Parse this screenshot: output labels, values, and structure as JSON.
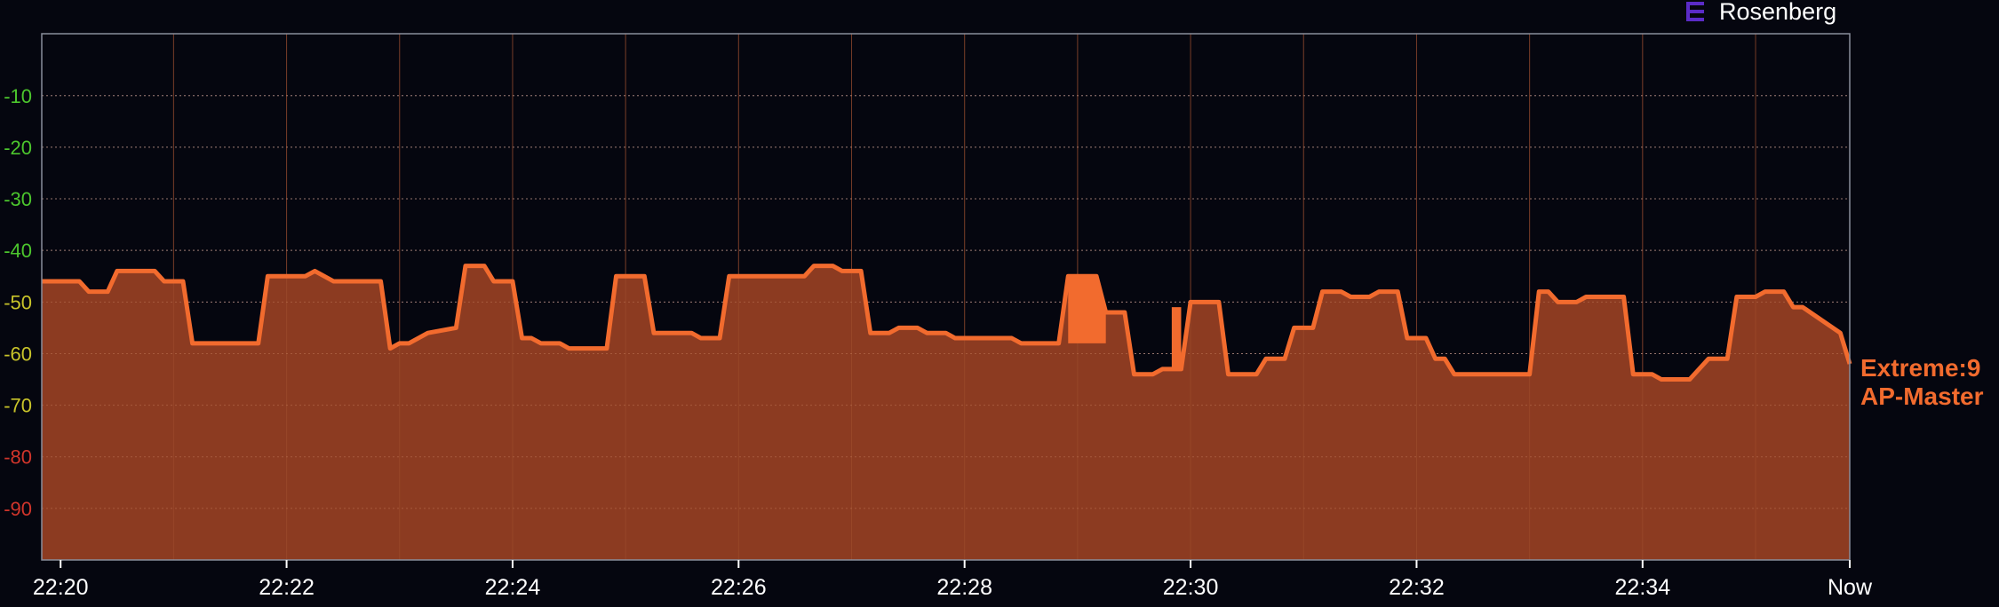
{
  "brand": {
    "name": "Rosenberg",
    "icon": "extreme-logo-icon",
    "icon_color": "#5b2bc7"
  },
  "colors": {
    "background": "#05060f",
    "series_line": "#f26b2e",
    "series_fill": "#8c3b21",
    "grid": "#6b6f80",
    "axis": "#8a8e9c",
    "tick_good": "#4cc62d",
    "tick_fair": "#c9c42a",
    "tick_bad": "#d1352b"
  },
  "chart_data": {
    "type": "area",
    "title": "",
    "xlabel": "",
    "ylabel": "",
    "ylim": [
      -100,
      2
    ],
    "y_ticks": [
      {
        "value": -10,
        "label": "-10",
        "status": "good"
      },
      {
        "value": -20,
        "label": "-20",
        "status": "good"
      },
      {
        "value": -30,
        "label": "-30",
        "status": "good"
      },
      {
        "value": -40,
        "label": "-40",
        "status": "good"
      },
      {
        "value": -50,
        "label": "-50",
        "status": "fair"
      },
      {
        "value": -60,
        "label": "-60",
        "status": "fair"
      },
      {
        "value": -70,
        "label": "-70",
        "status": "fair"
      },
      {
        "value": -80,
        "label": "-80",
        "status": "bad"
      },
      {
        "value": -90,
        "label": "-90",
        "status": "bad"
      }
    ],
    "xlim": [
      "22:19:50",
      "22:35:50"
    ],
    "x_ticks": [
      {
        "value": "22:20:00",
        "label": "22:20"
      },
      {
        "value": "22:22:00",
        "label": "22:22"
      },
      {
        "value": "22:24:00",
        "label": "22:24"
      },
      {
        "value": "22:26:00",
        "label": "22:26"
      },
      {
        "value": "22:28:00",
        "label": "22:28"
      },
      {
        "value": "22:30:00",
        "label": "22:30"
      },
      {
        "value": "22:32:00",
        "label": "22:32"
      },
      {
        "value": "22:34:00",
        "label": "22:34"
      },
      {
        "value": "22:35:50",
        "label": "Now"
      }
    ],
    "grid": true,
    "legend": "right-inline",
    "series": [
      {
        "name": "Extreme:9",
        "label_lines": [
          "Extreme:9",
          "AP-Master"
        ],
        "x": [
          "22:19:50",
          "22:20:10",
          "22:20:15",
          "22:20:25",
          "22:20:30",
          "22:20:50",
          "22:20:55",
          "22:21:05",
          "22:21:10",
          "22:21:45",
          "22:21:50",
          "22:22:10",
          "22:22:15",
          "22:22:25",
          "22:22:30",
          "22:22:50",
          "22:22:55",
          "22:23:00",
          "22:23:05",
          "22:23:15",
          "22:23:30",
          "22:23:35",
          "22:23:45",
          "22:23:50",
          "22:24:00",
          "22:24:05",
          "22:24:10",
          "22:24:15",
          "22:24:25",
          "22:24:30",
          "22:24:50",
          "22:24:55",
          "22:25:10",
          "22:25:15",
          "22:25:35",
          "22:25:40",
          "22:25:50",
          "22:25:55",
          "22:26:35",
          "22:26:40",
          "22:26:50",
          "22:26:55",
          "22:27:05",
          "22:27:10",
          "22:27:20",
          "22:27:25",
          "22:27:35",
          "22:27:40",
          "22:27:50",
          "22:27:55",
          "22:28:25",
          "22:28:30",
          "22:28:50",
          "22:28:55",
          "22:29:10",
          "22:29:15",
          "22:29:25",
          "22:29:30",
          "22:29:40",
          "22:29:45",
          "22:29:55",
          "22:30:00",
          "22:30:15",
          "22:30:20",
          "22:30:35",
          "22:30:40",
          "22:30:50",
          "22:30:55",
          "22:31:05",
          "22:31:10",
          "22:31:20",
          "22:31:25",
          "22:31:35",
          "22:31:40",
          "22:31:50",
          "22:31:55",
          "22:32:05",
          "22:32:10",
          "22:32:15",
          "22:32:20",
          "22:32:40",
          "22:32:45",
          "22:33:00",
          "22:33:05",
          "22:33:10",
          "22:33:15",
          "22:33:25",
          "22:33:30",
          "22:33:50",
          "22:33:55",
          "22:34:05",
          "22:34:10",
          "22:34:20",
          "22:34:25",
          "22:34:35",
          "22:34:40",
          "22:34:45",
          "22:34:50",
          "22:35:00",
          "22:35:05",
          "22:35:15",
          "22:35:20",
          "22:35:25",
          "22:35:45",
          "22:35:50"
        ],
        "y": [
          -46,
          -46,
          -48,
          -48,
          -44,
          -44,
          -46,
          -46,
          -58,
          -58,
          -45,
          -45,
          -44,
          -46,
          -46,
          -46,
          -59,
          -58,
          -58,
          -56,
          -55,
          -43,
          -43,
          -46,
          -46,
          -57,
          -57,
          -58,
          -58,
          -59,
          -59,
          -45,
          -45,
          -56,
          -56,
          -57,
          -57,
          -45,
          -45,
          -43,
          -43,
          -44,
          -44,
          -56,
          -56,
          -55,
          -55,
          -56,
          -56,
          -57,
          -57,
          -58,
          -58,
          -45,
          -45,
          -52,
          -52,
          -64,
          -64,
          -63,
          -63,
          -50,
          -50,
          -64,
          -64,
          -61,
          -61,
          -55,
          -55,
          -48,
          -48,
          -49,
          -49,
          -48,
          -48,
          -57,
          -57,
          -61,
          -61,
          -64,
          -64,
          -64,
          -64,
          -48,
          -48,
          -50,
          -50,
          -49,
          -49,
          -64,
          -64,
          -65,
          -65,
          -65,
          -61,
          -61,
          -61,
          -49,
          -49,
          -48,
          -48,
          -51,
          -51,
          -56,
          -62
        ]
      }
    ],
    "spikes": [
      {
        "x": [
          "22:28:55",
          "22:29:00",
          "22:29:10",
          "22:29:15"
        ],
        "y": [
          -45,
          -45,
          -45,
          -52
        ],
        "fill_to": -58
      },
      {
        "x": [
          "22:29:50",
          "22:29:55"
        ],
        "y": [
          -51,
          -51
        ],
        "fill_to": -63
      }
    ]
  }
}
